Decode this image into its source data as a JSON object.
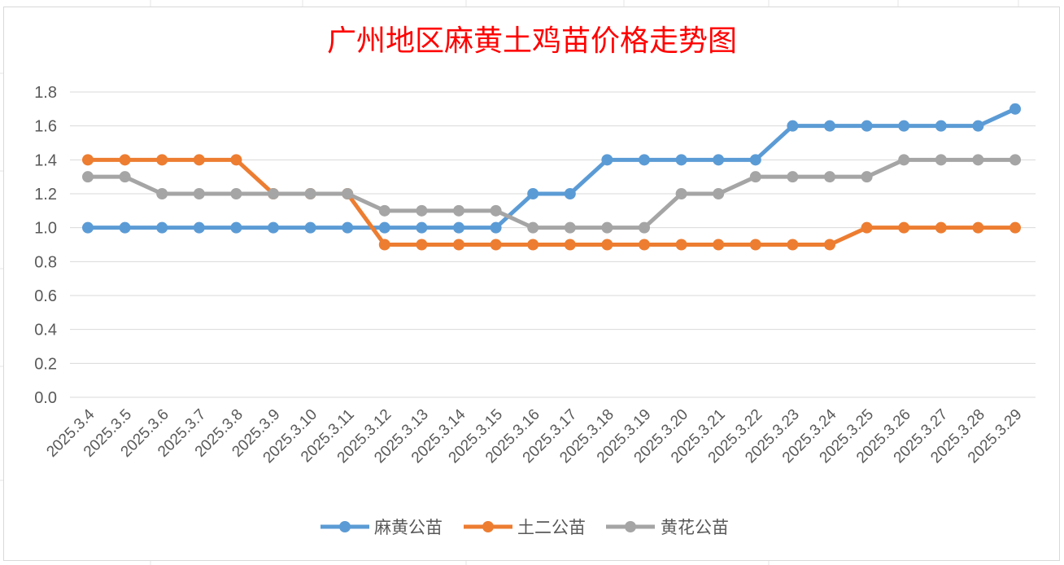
{
  "chart_data": {
    "type": "line",
    "title": "广州地区麻黄土鸡苗价格走势图",
    "xlabel": "",
    "ylabel": "",
    "ylim": [
      0,
      1.8
    ],
    "yticks": [
      "0.0",
      "0.2",
      "0.4",
      "0.6",
      "0.8",
      "1.0",
      "1.2",
      "1.4",
      "1.6",
      "1.8"
    ],
    "grid": "horizontal",
    "legend_position": "bottom",
    "categories": [
      "2025.3.4",
      "2025.3.5",
      "2025.3.6",
      "2025.3.7",
      "2025.3.8",
      "2025.3.9",
      "2025.3.10",
      "2025.3.11",
      "2025.3.12",
      "2025.3.13",
      "2025.3.14",
      "2025.3.15",
      "2025.3.16",
      "2025.3.17",
      "2025.3.18",
      "2025.3.19",
      "2025.3.20",
      "2025.3.21",
      "2025.3.22",
      "2025.3.23",
      "2025.3.24",
      "2025.3.25",
      "2025.3.26",
      "2025.3.27",
      "2025.3.28",
      "2025.3.29"
    ],
    "series": [
      {
        "name": "麻黄公苗",
        "color": "#5b9bd5",
        "values": [
          1.0,
          1.0,
          1.0,
          1.0,
          1.0,
          1.0,
          1.0,
          1.0,
          1.0,
          1.0,
          1.0,
          1.0,
          1.2,
          1.2,
          1.4,
          1.4,
          1.4,
          1.4,
          1.4,
          1.6,
          1.6,
          1.6,
          1.6,
          1.6,
          1.6,
          1.7
        ]
      },
      {
        "name": "土二公苗",
        "color": "#ed7d31",
        "values": [
          1.4,
          1.4,
          1.4,
          1.4,
          1.4,
          1.2,
          1.2,
          1.2,
          0.9,
          0.9,
          0.9,
          0.9,
          0.9,
          0.9,
          0.9,
          0.9,
          0.9,
          0.9,
          0.9,
          0.9,
          0.9,
          1.0,
          1.0,
          1.0,
          1.0,
          1.0
        ]
      },
      {
        "name": "黄花公苗",
        "color": "#a5a5a5",
        "values": [
          1.3,
          1.3,
          1.2,
          1.2,
          1.2,
          1.2,
          1.2,
          1.2,
          1.1,
          1.1,
          1.1,
          1.1,
          1.0,
          1.0,
          1.0,
          1.0,
          1.2,
          1.2,
          1.3,
          1.3,
          1.3,
          1.3,
          1.4,
          1.4,
          1.4,
          1.4
        ]
      }
    ]
  }
}
